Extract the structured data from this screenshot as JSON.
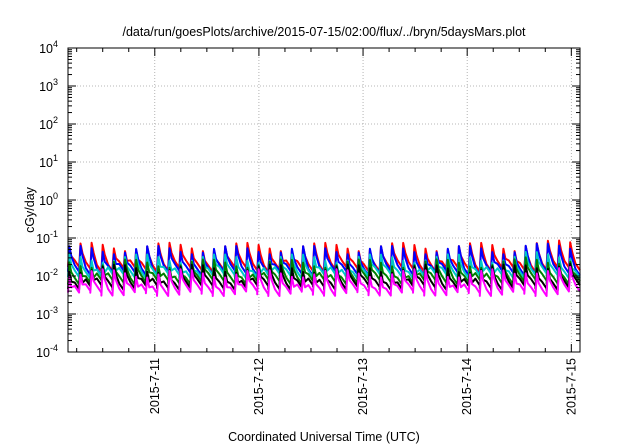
{
  "chart_data": {
    "type": "line",
    "title": "/data/run/goesPlots/archive/2015-07-15/02:00/flux/../bryn/5daysMars.plot",
    "xlabel": "Coordinated Universal Time (UTC)",
    "ylabel": "cGy/day",
    "yscale": "log",
    "ylim": [
      0.0001,
      10000
    ],
    "xlim": [
      "2015-07-10T04:00",
      "2015-07-15T02:00"
    ],
    "x_tick_labels": [
      "2015-7-11",
      "2015-7-12",
      "2015-7-13",
      "2015-7-14",
      "2015-7-15"
    ],
    "x_ticks": [
      "2015-07-11",
      "2015-07-12",
      "2015-07-13",
      "2015-07-14",
      "2015-07-15"
    ],
    "y_ticks": [
      0.0001,
      0.001,
      0.01,
      0.1,
      1,
      10,
      100,
      1000,
      10000
    ],
    "y_tick_labels": [
      {
        "base": "10",
        "exp": "-4"
      },
      {
        "base": "10",
        "exp": "-3"
      },
      {
        "base": "10",
        "exp": "-2"
      },
      {
        "base": "10",
        "exp": "-1"
      },
      {
        "base": "10",
        "exp": "0"
      },
      {
        "base": "10",
        "exp": "1"
      },
      {
        "base": "10",
        "exp": "2"
      },
      {
        "base": "10",
        "exp": "3"
      },
      {
        "base": "10",
        "exp": "4"
      }
    ],
    "grid": true,
    "legend": "none",
    "pattern": "sawtooth",
    "cycles": 46,
    "series": [
      {
        "color": "#ff0000",
        "low": 0.015,
        "high": 0.06
      },
      {
        "color": "#0000ff",
        "low": 0.012,
        "high": 0.05
      },
      {
        "color": "#00c8c8",
        "low": 0.01,
        "high": 0.03
      },
      {
        "color": "#008000",
        "low": 0.007,
        "high": 0.022
      },
      {
        "color": "#000000",
        "low": 0.005,
        "high": 0.016
      },
      {
        "color": "#ff00ff",
        "low": 0.0035,
        "high": 0.012
      }
    ]
  }
}
